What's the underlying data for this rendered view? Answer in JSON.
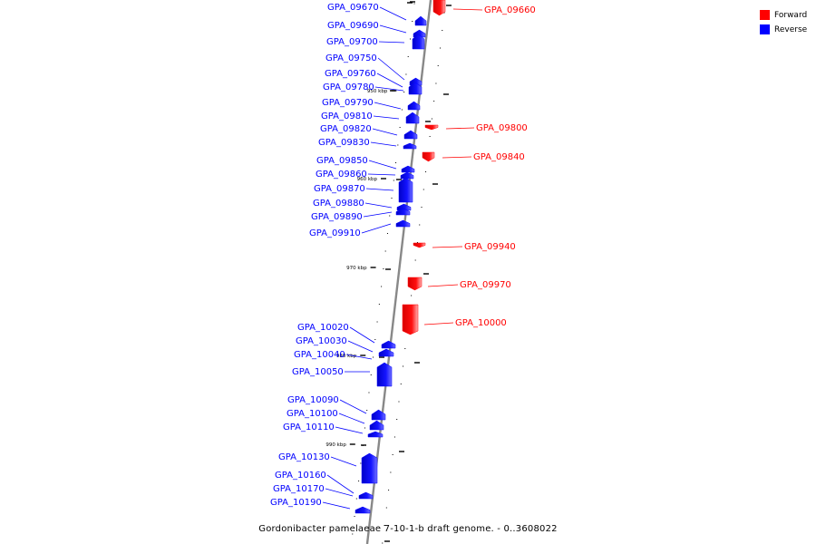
{
  "colors": {
    "forward": "#ff0000",
    "reverse": "#0000ff",
    "axis": "#888888"
  },
  "legend": [
    {
      "label": "Forward",
      "color": "#ff0000"
    },
    {
      "label": "Reverse",
      "color": "#0000ff"
    }
  ],
  "caption": "Gordonibacter pamelaeae 7-10-1-b draft genome. - 0..3608022",
  "scale_labels": [
    {
      "label": "950 kbp",
      "kbp": 950
    },
    {
      "label": "960 kbp",
      "kbp": 960
    },
    {
      "label": "970 kbp",
      "kbp": 970
    },
    {
      "label": "980 kbp",
      "kbp": 980
    },
    {
      "label": "990 kbp",
      "kbp": 990
    }
  ],
  "genes": [
    {
      "name": "GPA_09660",
      "strand": "forward"
    },
    {
      "name": "GPA_09670",
      "strand": "reverse"
    },
    {
      "name": "GPA_09690",
      "strand": "reverse"
    },
    {
      "name": "GPA_09700",
      "strand": "reverse"
    },
    {
      "name": "GPA_09750",
      "strand": "reverse"
    },
    {
      "name": "GPA_09760",
      "strand": "reverse"
    },
    {
      "name": "GPA_09780",
      "strand": "reverse"
    },
    {
      "name": "GPA_09790",
      "strand": "reverse"
    },
    {
      "name": "GPA_09800",
      "strand": "forward"
    },
    {
      "name": "GPA_09810",
      "strand": "reverse"
    },
    {
      "name": "GPA_09820",
      "strand": "reverse"
    },
    {
      "name": "GPA_09830",
      "strand": "reverse"
    },
    {
      "name": "GPA_09840",
      "strand": "forward"
    },
    {
      "name": "GPA_09850",
      "strand": "reverse"
    },
    {
      "name": "GPA_09860",
      "strand": "reverse"
    },
    {
      "name": "GPA_09870",
      "strand": "reverse"
    },
    {
      "name": "GPA_09880",
      "strand": "reverse"
    },
    {
      "name": "GPA_09890",
      "strand": "reverse"
    },
    {
      "name": "GPA_09910",
      "strand": "reverse"
    },
    {
      "name": "GPA_09940",
      "strand": "forward"
    },
    {
      "name": "GPA_09970",
      "strand": "forward"
    },
    {
      "name": "GPA_10000",
      "strand": "forward"
    },
    {
      "name": "GPA_10020",
      "strand": "reverse"
    },
    {
      "name": "GPA_10030",
      "strand": "reverse"
    },
    {
      "name": "GPA_10040",
      "strand": "reverse"
    },
    {
      "name": "GPA_10050",
      "strand": "reverse"
    },
    {
      "name": "GPA_10090",
      "strand": "reverse"
    },
    {
      "name": "GPA_10100",
      "strand": "reverse"
    },
    {
      "name": "GPA_10110",
      "strand": "reverse"
    },
    {
      "name": "GPA_10130",
      "strand": "reverse"
    },
    {
      "name": "GPA_10160",
      "strand": "reverse"
    },
    {
      "name": "GPA_10170",
      "strand": "reverse"
    },
    {
      "name": "GPA_10190",
      "strand": "reverse"
    }
  ]
}
